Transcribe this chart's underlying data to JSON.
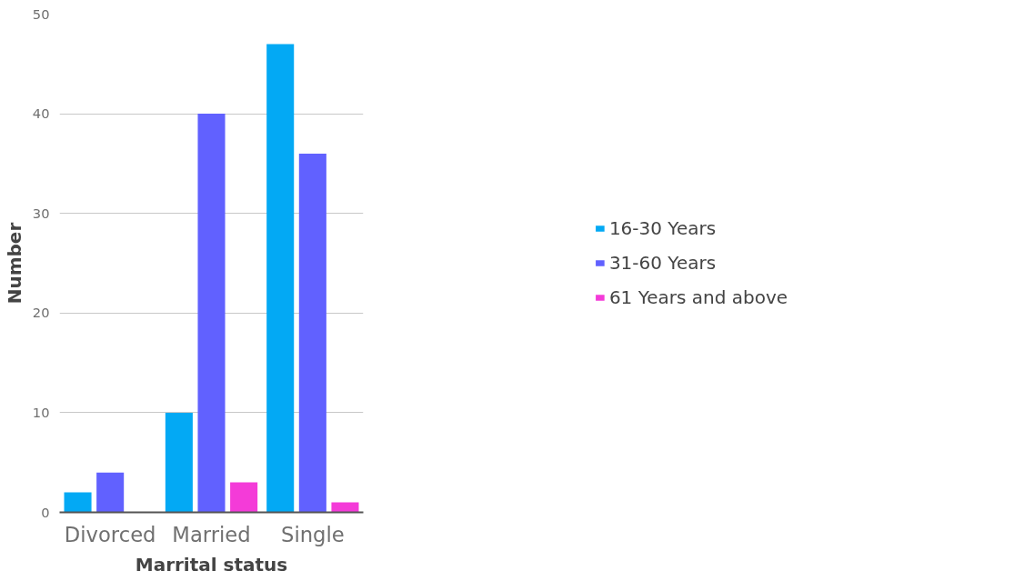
{
  "chart_data": {
    "type": "bar",
    "xlabel": "Marrital status",
    "ylabel": "Number",
    "categories": [
      "Divorced",
      "Married",
      "Single"
    ],
    "series": [
      {
        "name": "16-30 Years",
        "color": "#03a9f4",
        "values": [
          2,
          10,
          47
        ]
      },
      {
        "name": "31-60 Years",
        "color": "#6161ff",
        "values": [
          4,
          40,
          36
        ]
      },
      {
        "name": "61 Years and above",
        "color": "#f43bd8",
        "values": [
          null,
          3,
          1
        ]
      }
    ],
    "ylim": [
      0,
      50
    ],
    "yticks": [
      0,
      10,
      20,
      30,
      40,
      50
    ],
    "grid": "y",
    "legend": "right"
  }
}
